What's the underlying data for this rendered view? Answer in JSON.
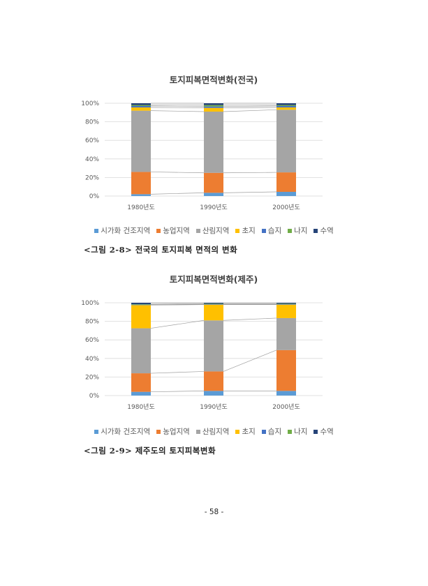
{
  "chart_data": [
    {
      "type": "bar",
      "stacked": true,
      "percent": true,
      "title": "토지피복면적변화(전국)",
      "categories": [
        "1980년도",
        "1990년도",
        "2000년도"
      ],
      "yticks": [
        "0%",
        "20%",
        "40%",
        "60%",
        "80%",
        "100%"
      ],
      "ylim": [
        0,
        100
      ],
      "grid": true,
      "legend_position": "bottom",
      "series_lines": true,
      "series": [
        {
          "name": "시가화 건조지역",
          "color": "#5B9BD5",
          "values": [
            2,
            3.5,
            4.5
          ]
        },
        {
          "name": "농업지역",
          "color": "#ED7D31",
          "values": [
            24,
            21.5,
            21
          ]
        },
        {
          "name": "산림지역",
          "color": "#A5A5A5",
          "values": [
            66,
            66,
            67.5
          ]
        },
        {
          "name": "초지",
          "color": "#FFC000",
          "values": [
            3.5,
            4,
            2.5
          ]
        },
        {
          "name": "습지",
          "color": "#4472C4",
          "values": [
            1.5,
            1.5,
            1.5
          ]
        },
        {
          "name": "나지",
          "color": "#70AD47",
          "values": [
            1,
            1.5,
            1
          ]
        },
        {
          "name": "수역",
          "color": "#264478",
          "values": [
            2,
            2,
            2
          ]
        }
      ]
    },
    {
      "type": "bar",
      "stacked": true,
      "percent": true,
      "title": "토지피복면적변화(제주)",
      "categories": [
        "1980년도",
        "1990년도",
        "2000년도"
      ],
      "yticks": [
        "0%",
        "20%",
        "40%",
        "60%",
        "80%",
        "100%"
      ],
      "ylim": [
        0,
        100
      ],
      "grid": true,
      "legend_position": "bottom",
      "series_lines": true,
      "series": [
        {
          "name": "시가화 건조지역",
          "color": "#5B9BD5",
          "values": [
            4,
            5,
            5
          ]
        },
        {
          "name": "농업지역",
          "color": "#ED7D31",
          "values": [
            20,
            21,
            44
          ]
        },
        {
          "name": "산림지역",
          "color": "#A5A5A5",
          "values": [
            48.5,
            55,
            34.5
          ]
        },
        {
          "name": "초지",
          "color": "#FFC000",
          "values": [
            25,
            17,
            14.5
          ]
        },
        {
          "name": "습지",
          "color": "#4472C4",
          "values": [
            0.5,
            0.5,
            0.5
          ]
        },
        {
          "name": "나지",
          "color": "#70AD47",
          "values": [
            0.5,
            0.5,
            0.5
          ]
        },
        {
          "name": "수역",
          "color": "#264478",
          "values": [
            1.5,
            1,
            1
          ]
        }
      ]
    }
  ],
  "captions": [
    "<그림 2-8> 전국의 토지피복 면적의 변화",
    "<그림 2-9> 제주도의 토지피복변화"
  ],
  "page_number": "- 58 -"
}
